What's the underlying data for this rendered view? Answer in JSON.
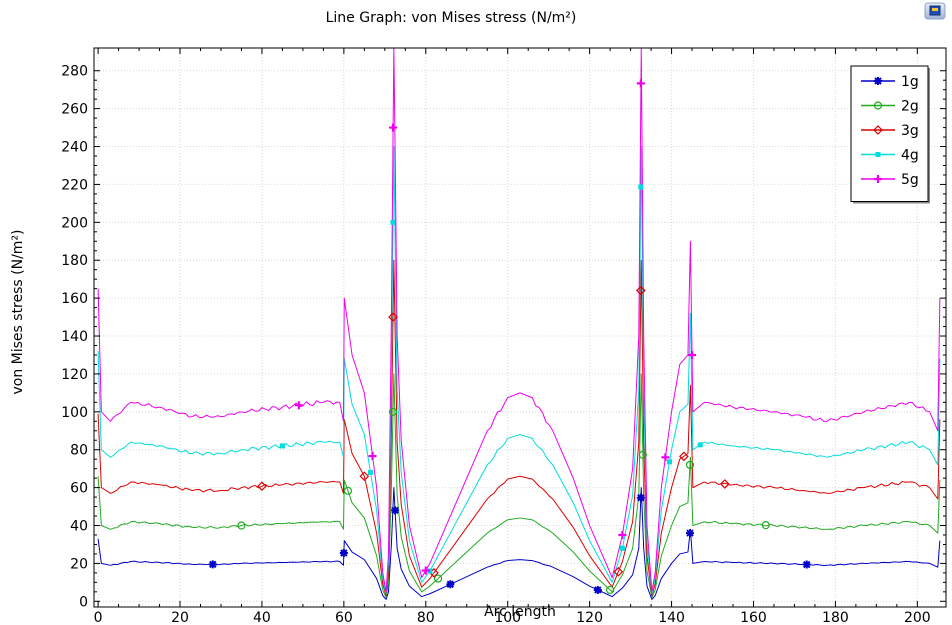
{
  "chart_data": {
    "type": "line",
    "title": "Line Graph: von Mises stress (N/m²)",
    "xlabel": "Arc length",
    "ylabel": "von Mises stress (N/m²)",
    "xlim": [
      -1,
      207
    ],
    "ylim": [
      -3,
      292
    ],
    "xticks": [
      0,
      20,
      40,
      60,
      80,
      100,
      120,
      140,
      160,
      180,
      200
    ],
    "yticks": [
      0,
      20,
      40,
      60,
      80,
      100,
      120,
      140,
      160,
      180,
      200,
      220,
      240,
      260,
      280
    ],
    "grid": true,
    "legend_position": "top-right",
    "series": [
      {
        "name": "1g",
        "color": "#0000c8",
        "marker": "asterisk",
        "scale": 1,
        "markers_x": [
          28,
          60,
          72.5,
          86,
          122,
          132.5,
          144.5,
          173
        ],
        "points": [
          [
            0,
            33
          ],
          [
            0.8,
            20
          ],
          [
            3,
            19
          ],
          [
            8,
            21
          ],
          [
            15,
            20.5
          ],
          [
            23,
            19.5
          ],
          [
            30,
            19.5
          ],
          [
            35,
            20
          ],
          [
            45,
            20.5
          ],
          [
            55,
            21
          ],
          [
            59,
            21
          ],
          [
            59.9,
            19
          ],
          [
            60.1,
            32
          ],
          [
            62,
            26
          ],
          [
            65,
            22
          ],
          [
            68,
            12
          ],
          [
            69.5,
            3
          ],
          [
            70.3,
            1
          ],
          [
            70.9,
            5
          ],
          [
            71.6,
            30
          ],
          [
            72.2,
            60
          ],
          [
            72.5,
            48
          ],
          [
            73,
            28
          ],
          [
            74,
            17
          ],
          [
            76,
            8
          ],
          [
            79,
            2.5
          ],
          [
            81,
            4
          ],
          [
            85,
            8
          ],
          [
            90,
            13
          ],
          [
            95,
            18
          ],
          [
            100,
            21.5
          ],
          [
            103,
            22
          ],
          [
            106,
            21.5
          ],
          [
            111,
            18
          ],
          [
            116,
            13
          ],
          [
            120,
            8
          ],
          [
            124,
            4
          ],
          [
            125.5,
            2.5
          ],
          [
            128,
            7
          ],
          [
            130.5,
            14
          ],
          [
            132,
            28
          ],
          [
            132.6,
            60
          ],
          [
            133.2,
            28
          ],
          [
            134,
            8
          ],
          [
            135.2,
            1
          ],
          [
            136,
            3
          ],
          [
            137.5,
            12
          ],
          [
            140,
            20
          ],
          [
            142,
            25
          ],
          [
            144,
            26
          ],
          [
            144.6,
            38
          ],
          [
            145.2,
            20
          ],
          [
            148,
            21
          ],
          [
            155,
            20.5
          ],
          [
            165,
            20
          ],
          [
            172,
            19.5
          ],
          [
            178,
            19
          ],
          [
            187,
            20
          ],
          [
            198,
            21
          ],
          [
            203,
            20
          ],
          [
            205,
            18
          ],
          [
            205.5,
            32
          ]
        ]
      },
      {
        "name": "2g",
        "color": "#22aa22",
        "marker": "circle",
        "scale": 2,
        "markers_x": [
          35,
          61,
          72,
          83,
          125,
          133,
          144.5,
          163
        ],
        "points": [
          [
            0,
            66
          ],
          [
            0.8,
            40
          ],
          [
            3,
            38
          ],
          [
            8,
            42
          ],
          [
            15,
            41
          ],
          [
            23,
            39
          ],
          [
            30,
            39
          ],
          [
            35,
            40
          ],
          [
            45,
            41
          ],
          [
            55,
            42
          ],
          [
            59,
            42
          ],
          [
            59.9,
            38
          ],
          [
            60.1,
            64
          ],
          [
            62,
            52
          ],
          [
            65,
            44
          ],
          [
            68,
            24
          ],
          [
            69.5,
            6
          ],
          [
            70.3,
            2
          ],
          [
            70.9,
            10
          ],
          [
            71.6,
            60
          ],
          [
            72.2,
            120
          ],
          [
            72.5,
            96
          ],
          [
            73,
            56
          ],
          [
            74,
            34
          ],
          [
            76,
            16
          ],
          [
            79,
            5
          ],
          [
            81,
            8
          ],
          [
            85,
            16
          ],
          [
            90,
            26
          ],
          [
            95,
            36
          ],
          [
            100,
            43
          ],
          [
            103,
            44
          ],
          [
            106,
            43
          ],
          [
            111,
            36
          ],
          [
            116,
            26
          ],
          [
            120,
            16
          ],
          [
            124,
            8
          ],
          [
            125.5,
            5
          ],
          [
            128,
            14
          ],
          [
            130.5,
            28
          ],
          [
            132,
            56
          ],
          [
            132.6,
            120
          ],
          [
            133.2,
            56
          ],
          [
            134,
            16
          ],
          [
            135.2,
            2
          ],
          [
            136,
            6
          ],
          [
            137.5,
            24
          ],
          [
            140,
            40
          ],
          [
            142,
            50
          ],
          [
            144,
            52
          ],
          [
            144.6,
            76
          ],
          [
            145.2,
            40
          ],
          [
            148,
            42
          ],
          [
            155,
            41
          ],
          [
            165,
            40
          ],
          [
            172,
            39
          ],
          [
            178,
            38
          ],
          [
            187,
            40
          ],
          [
            198,
            42
          ],
          [
            203,
            40
          ],
          [
            205,
            36
          ],
          [
            205.5,
            64
          ]
        ]
      },
      {
        "name": "3g",
        "color": "#dd0000",
        "marker": "diamond",
        "scale": 3,
        "markers_x": [
          40,
          65,
          72,
          82,
          127,
          132.5,
          143,
          153
        ],
        "points": [
          [
            0,
            99
          ],
          [
            0.8,
            60
          ],
          [
            3,
            57
          ],
          [
            8,
            63
          ],
          [
            15,
            61.5
          ],
          [
            23,
            58.5
          ],
          [
            30,
            58.5
          ],
          [
            35,
            60
          ],
          [
            45,
            61.5
          ],
          [
            55,
            63
          ],
          [
            59,
            63
          ],
          [
            59.9,
            57
          ],
          [
            60.1,
            96
          ],
          [
            62,
            78
          ],
          [
            65,
            66
          ],
          [
            68,
            36
          ],
          [
            69.5,
            9
          ],
          [
            70.3,
            3
          ],
          [
            70.9,
            15
          ],
          [
            71.6,
            90
          ],
          [
            72.2,
            180
          ],
          [
            72.5,
            144
          ],
          [
            73,
            84
          ],
          [
            74,
            51
          ],
          [
            76,
            24
          ],
          [
            79,
            7.5
          ],
          [
            81,
            12
          ],
          [
            85,
            24
          ],
          [
            90,
            39
          ],
          [
            95,
            54
          ],
          [
            100,
            64.5
          ],
          [
            103,
            66
          ],
          [
            106,
            64.5
          ],
          [
            111,
            54
          ],
          [
            116,
            39
          ],
          [
            120,
            24
          ],
          [
            124,
            12
          ],
          [
            125.5,
            7.5
          ],
          [
            128,
            21
          ],
          [
            130.5,
            42
          ],
          [
            132,
            84
          ],
          [
            132.6,
            180
          ],
          [
            133.2,
            84
          ],
          [
            134,
            24
          ],
          [
            135.2,
            3
          ],
          [
            136,
            9
          ],
          [
            137.5,
            36
          ],
          [
            140,
            60
          ],
          [
            142,
            75
          ],
          [
            144,
            78
          ],
          [
            144.6,
            114
          ],
          [
            145.2,
            60
          ],
          [
            148,
            63
          ],
          [
            155,
            61.5
          ],
          [
            165,
            60
          ],
          [
            172,
            58.5
          ],
          [
            178,
            57
          ],
          [
            187,
            60
          ],
          [
            198,
            63
          ],
          [
            203,
            60
          ],
          [
            205,
            54
          ],
          [
            205.5,
            96
          ]
        ]
      },
      {
        "name": "4g",
        "color": "#00dddd",
        "marker": "square",
        "scale": 4,
        "markers_x": [
          45,
          66.5,
          72,
          81,
          128,
          132.5,
          139.5,
          147
        ],
        "points": [
          [
            0,
            132
          ],
          [
            0.8,
            80
          ],
          [
            3,
            76
          ],
          [
            8,
            84
          ],
          [
            15,
            82
          ],
          [
            23,
            78
          ],
          [
            30,
            78
          ],
          [
            35,
            80
          ],
          [
            45,
            82
          ],
          [
            55,
            84
          ],
          [
            59,
            84
          ],
          [
            59.9,
            76
          ],
          [
            60.1,
            128
          ],
          [
            62,
            104
          ],
          [
            65,
            88
          ],
          [
            68,
            48
          ],
          [
            69.5,
            12
          ],
          [
            70.3,
            4
          ],
          [
            70.9,
            20
          ],
          [
            71.6,
            120
          ],
          [
            72.2,
            240
          ],
          [
            72.5,
            192
          ],
          [
            73,
            112
          ],
          [
            74,
            68
          ],
          [
            76,
            32
          ],
          [
            79,
            10
          ],
          [
            81,
            16
          ],
          [
            85,
            32
          ],
          [
            90,
            52
          ],
          [
            95,
            72
          ],
          [
            100,
            86
          ],
          [
            103,
            88
          ],
          [
            106,
            86
          ],
          [
            111,
            72
          ],
          [
            116,
            52
          ],
          [
            120,
            32
          ],
          [
            124,
            16
          ],
          [
            125.5,
            10
          ],
          [
            128,
            28
          ],
          [
            130.5,
            56
          ],
          [
            132,
            112
          ],
          [
            132.6,
            240
          ],
          [
            133.2,
            112
          ],
          [
            134,
            32
          ],
          [
            135.2,
            4
          ],
          [
            136,
            12
          ],
          [
            137.5,
            48
          ],
          [
            140,
            80
          ],
          [
            142,
            100
          ],
          [
            144,
            104
          ],
          [
            144.6,
            152
          ],
          [
            145.2,
            80
          ],
          [
            148,
            84
          ],
          [
            155,
            82
          ],
          [
            165,
            80
          ],
          [
            172,
            78
          ],
          [
            178,
            76
          ],
          [
            187,
            80
          ],
          [
            198,
            84
          ],
          [
            203,
            80
          ],
          [
            205,
            72
          ],
          [
            205.5,
            128
          ]
        ]
      },
      {
        "name": "5g",
        "color": "#ee00ee",
        "marker": "plus",
        "scale": 5,
        "markers_x": [
          49,
          67,
          72,
          80,
          128,
          132.5,
          138.5,
          145
        ],
        "points": [
          [
            0,
            165
          ],
          [
            0.8,
            100
          ],
          [
            3,
            95
          ],
          [
            8,
            105
          ],
          [
            15,
            102.5
          ],
          [
            23,
            97.5
          ],
          [
            30,
            97.5
          ],
          [
            35,
            100
          ],
          [
            45,
            102.5
          ],
          [
            55,
            105
          ],
          [
            59,
            105
          ],
          [
            59.9,
            95
          ],
          [
            60.1,
            160
          ],
          [
            62,
            130
          ],
          [
            65,
            110
          ],
          [
            68,
            60
          ],
          [
            69.5,
            15
          ],
          [
            70.3,
            5
          ],
          [
            70.9,
            25
          ],
          [
            71.6,
            150
          ],
          [
            72.2,
            300
          ],
          [
            72.5,
            240
          ],
          [
            73,
            140
          ],
          [
            74,
            85
          ],
          [
            76,
            40
          ],
          [
            79,
            12.5
          ],
          [
            81,
            20
          ],
          [
            85,
            40
          ],
          [
            90,
            65
          ],
          [
            95,
            90
          ],
          [
            100,
            107.5
          ],
          [
            103,
            110
          ],
          [
            106,
            107.5
          ],
          [
            111,
            90
          ],
          [
            116,
            65
          ],
          [
            120,
            40
          ],
          [
            124,
            20
          ],
          [
            125.5,
            12.5
          ],
          [
            128,
            35
          ],
          [
            130.5,
            70
          ],
          [
            132,
            140
          ],
          [
            132.6,
            300
          ],
          [
            133.2,
            140
          ],
          [
            134,
            40
          ],
          [
            135.2,
            5
          ],
          [
            136,
            15
          ],
          [
            137.5,
            60
          ],
          [
            140,
            100
          ],
          [
            142,
            125
          ],
          [
            144,
            130
          ],
          [
            144.6,
            190
          ],
          [
            145.2,
            100
          ],
          [
            148,
            105
          ],
          [
            155,
            102.5
          ],
          [
            165,
            100
          ],
          [
            172,
            97.5
          ],
          [
            178,
            95
          ],
          [
            187,
            100
          ],
          [
            198,
            105
          ],
          [
            203,
            100
          ],
          [
            205,
            90
          ],
          [
            205.5,
            160
          ]
        ]
      }
    ]
  }
}
